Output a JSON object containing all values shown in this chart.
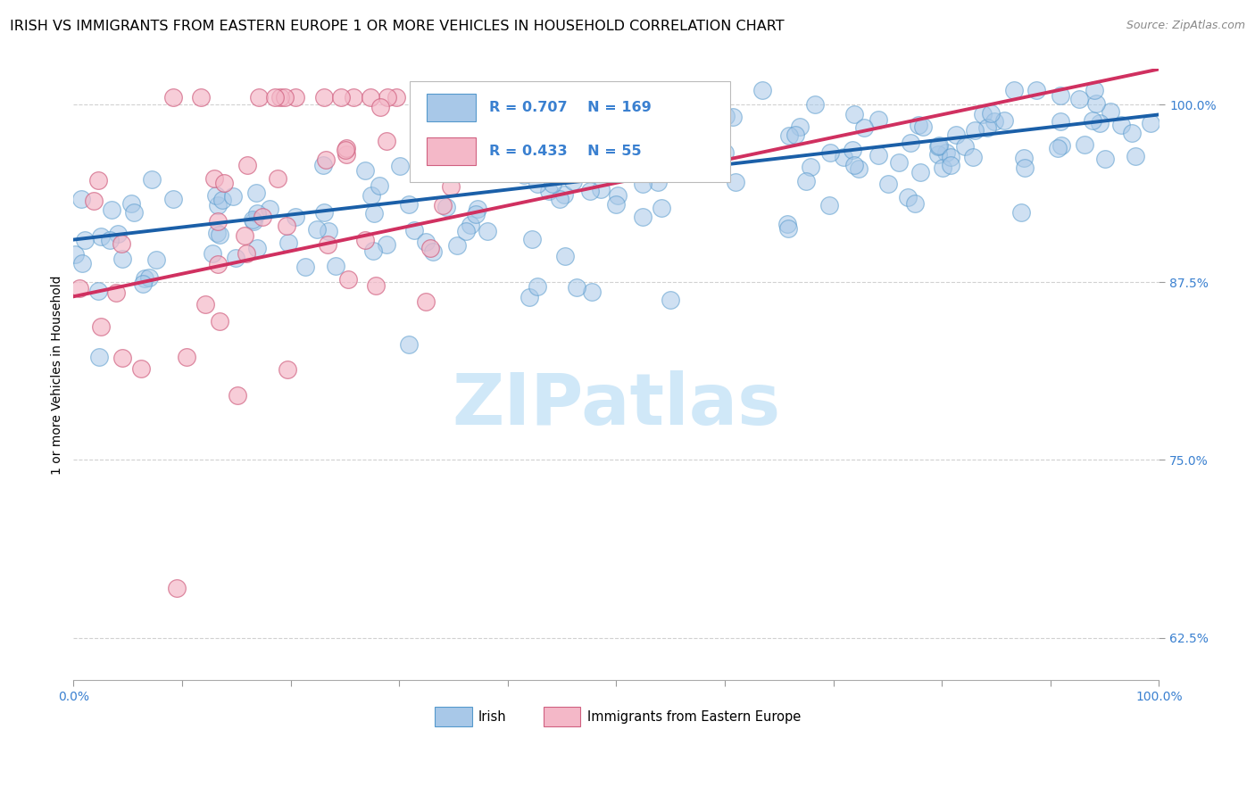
{
  "title": "IRISH VS IMMIGRANTS FROM EASTERN EUROPE 1 OR MORE VEHICLES IN HOUSEHOLD CORRELATION CHART",
  "source": "Source: ZipAtlas.com",
  "ylabel": "1 or more Vehicles in Household",
  "xlim": [
    0.0,
    1.0
  ],
  "ylim": [
    0.595,
    1.025
  ],
  "yticks": [
    0.625,
    0.75,
    0.875,
    1.0
  ],
  "ytick_labels": [
    "62.5%",
    "75.0%",
    "87.5%",
    "100.0%"
  ],
  "xtick_labels": [
    "0.0%",
    "100.0%"
  ],
  "legend_r_blue": "R = 0.707",
  "legend_n_blue": "N = 169",
  "legend_r_pink": "R = 0.433",
  "legend_n_pink": "N = 55",
  "blue_fill": "#a8c8e8",
  "blue_edge": "#5599cc",
  "pink_fill": "#f4b8c8",
  "pink_edge": "#d06080",
  "blue_line": "#1a5fa8",
  "pink_line": "#d03060",
  "text_color": "#3a80d0",
  "watermark_text": "ZIPatlas",
  "watermark_color": "#d0e8f8",
  "bg_color": "#ffffff",
  "grid_color": "#cccccc",
  "title_fontsize": 11.5,
  "tick_fontsize": 10,
  "axis_label_fontsize": 10,
  "seed": 7,
  "blue_n": 169,
  "pink_n": 55,
  "blue_R": 0.707,
  "pink_R": 0.433,
  "blue_line_intercept": 0.905,
  "blue_line_slope": 0.088,
  "pink_line_intercept": 0.865,
  "pink_line_slope": 0.16
}
